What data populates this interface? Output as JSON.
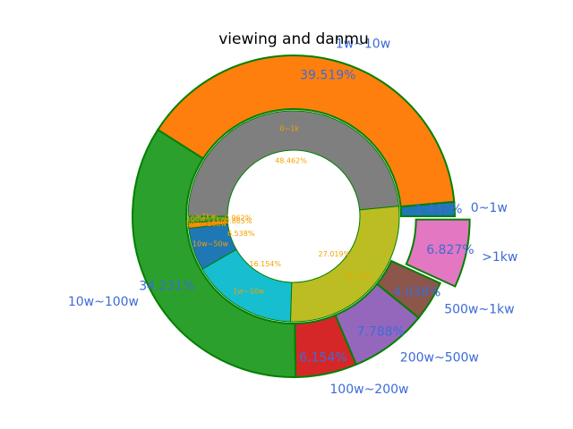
{
  "chart_data": [
    {
      "type": "pie",
      "ring": "outer",
      "title": "viewing and danmu",
      "categories": [
        "0~1w",
        "1w~10w",
        "10w~100w",
        "100w~200w",
        "200w~500w",
        "500w~1kw",
        ">1kw"
      ],
      "values": [
        1.442,
        39.519,
        34.231,
        6.154,
        7.788,
        4.038,
        6.827
      ],
      "value_labels": [
        "1.442%",
        "39.519%",
        "34.231%",
        "6.154%",
        "7.788%",
        "4.038%",
        "6.827%"
      ],
      "colors": [
        "#1f77b4",
        "#ff7f0e",
        "#2ca02c",
        "#d62728",
        "#9467bd",
        "#8c564b",
        "#e377c2"
      ],
      "exploded": [
        false,
        false,
        false,
        false,
        false,
        false,
        true
      ],
      "edgecolor": "#008000",
      "start_angle_deg": 0,
      "direction": "counterclockwise"
    },
    {
      "type": "pie",
      "ring": "inner",
      "categories": [
        "0~1k",
        "1k~1w",
        "1w~10w",
        "10w~50w",
        "50w~100w",
        "100w~1kw",
        ">1kw"
      ],
      "values": [
        48.462,
        27.019,
        16.154,
        6.538,
        0.865,
        0.962,
        0.0
      ],
      "value_labels": [
        "48.462%",
        "27.019%",
        "16.154%",
        "6.538%",
        "0.865%",
        "0.962%",
        ""
      ],
      "colors": [
        "#7f7f7f",
        "#bcbd22",
        "#17becf",
        "#1f77b4",
        "#ff7f0e",
        "#2ca02c",
        "#d62728"
      ],
      "edgecolor": "#008000",
      "start_angle_deg": 180,
      "direction": "clockwise"
    }
  ]
}
